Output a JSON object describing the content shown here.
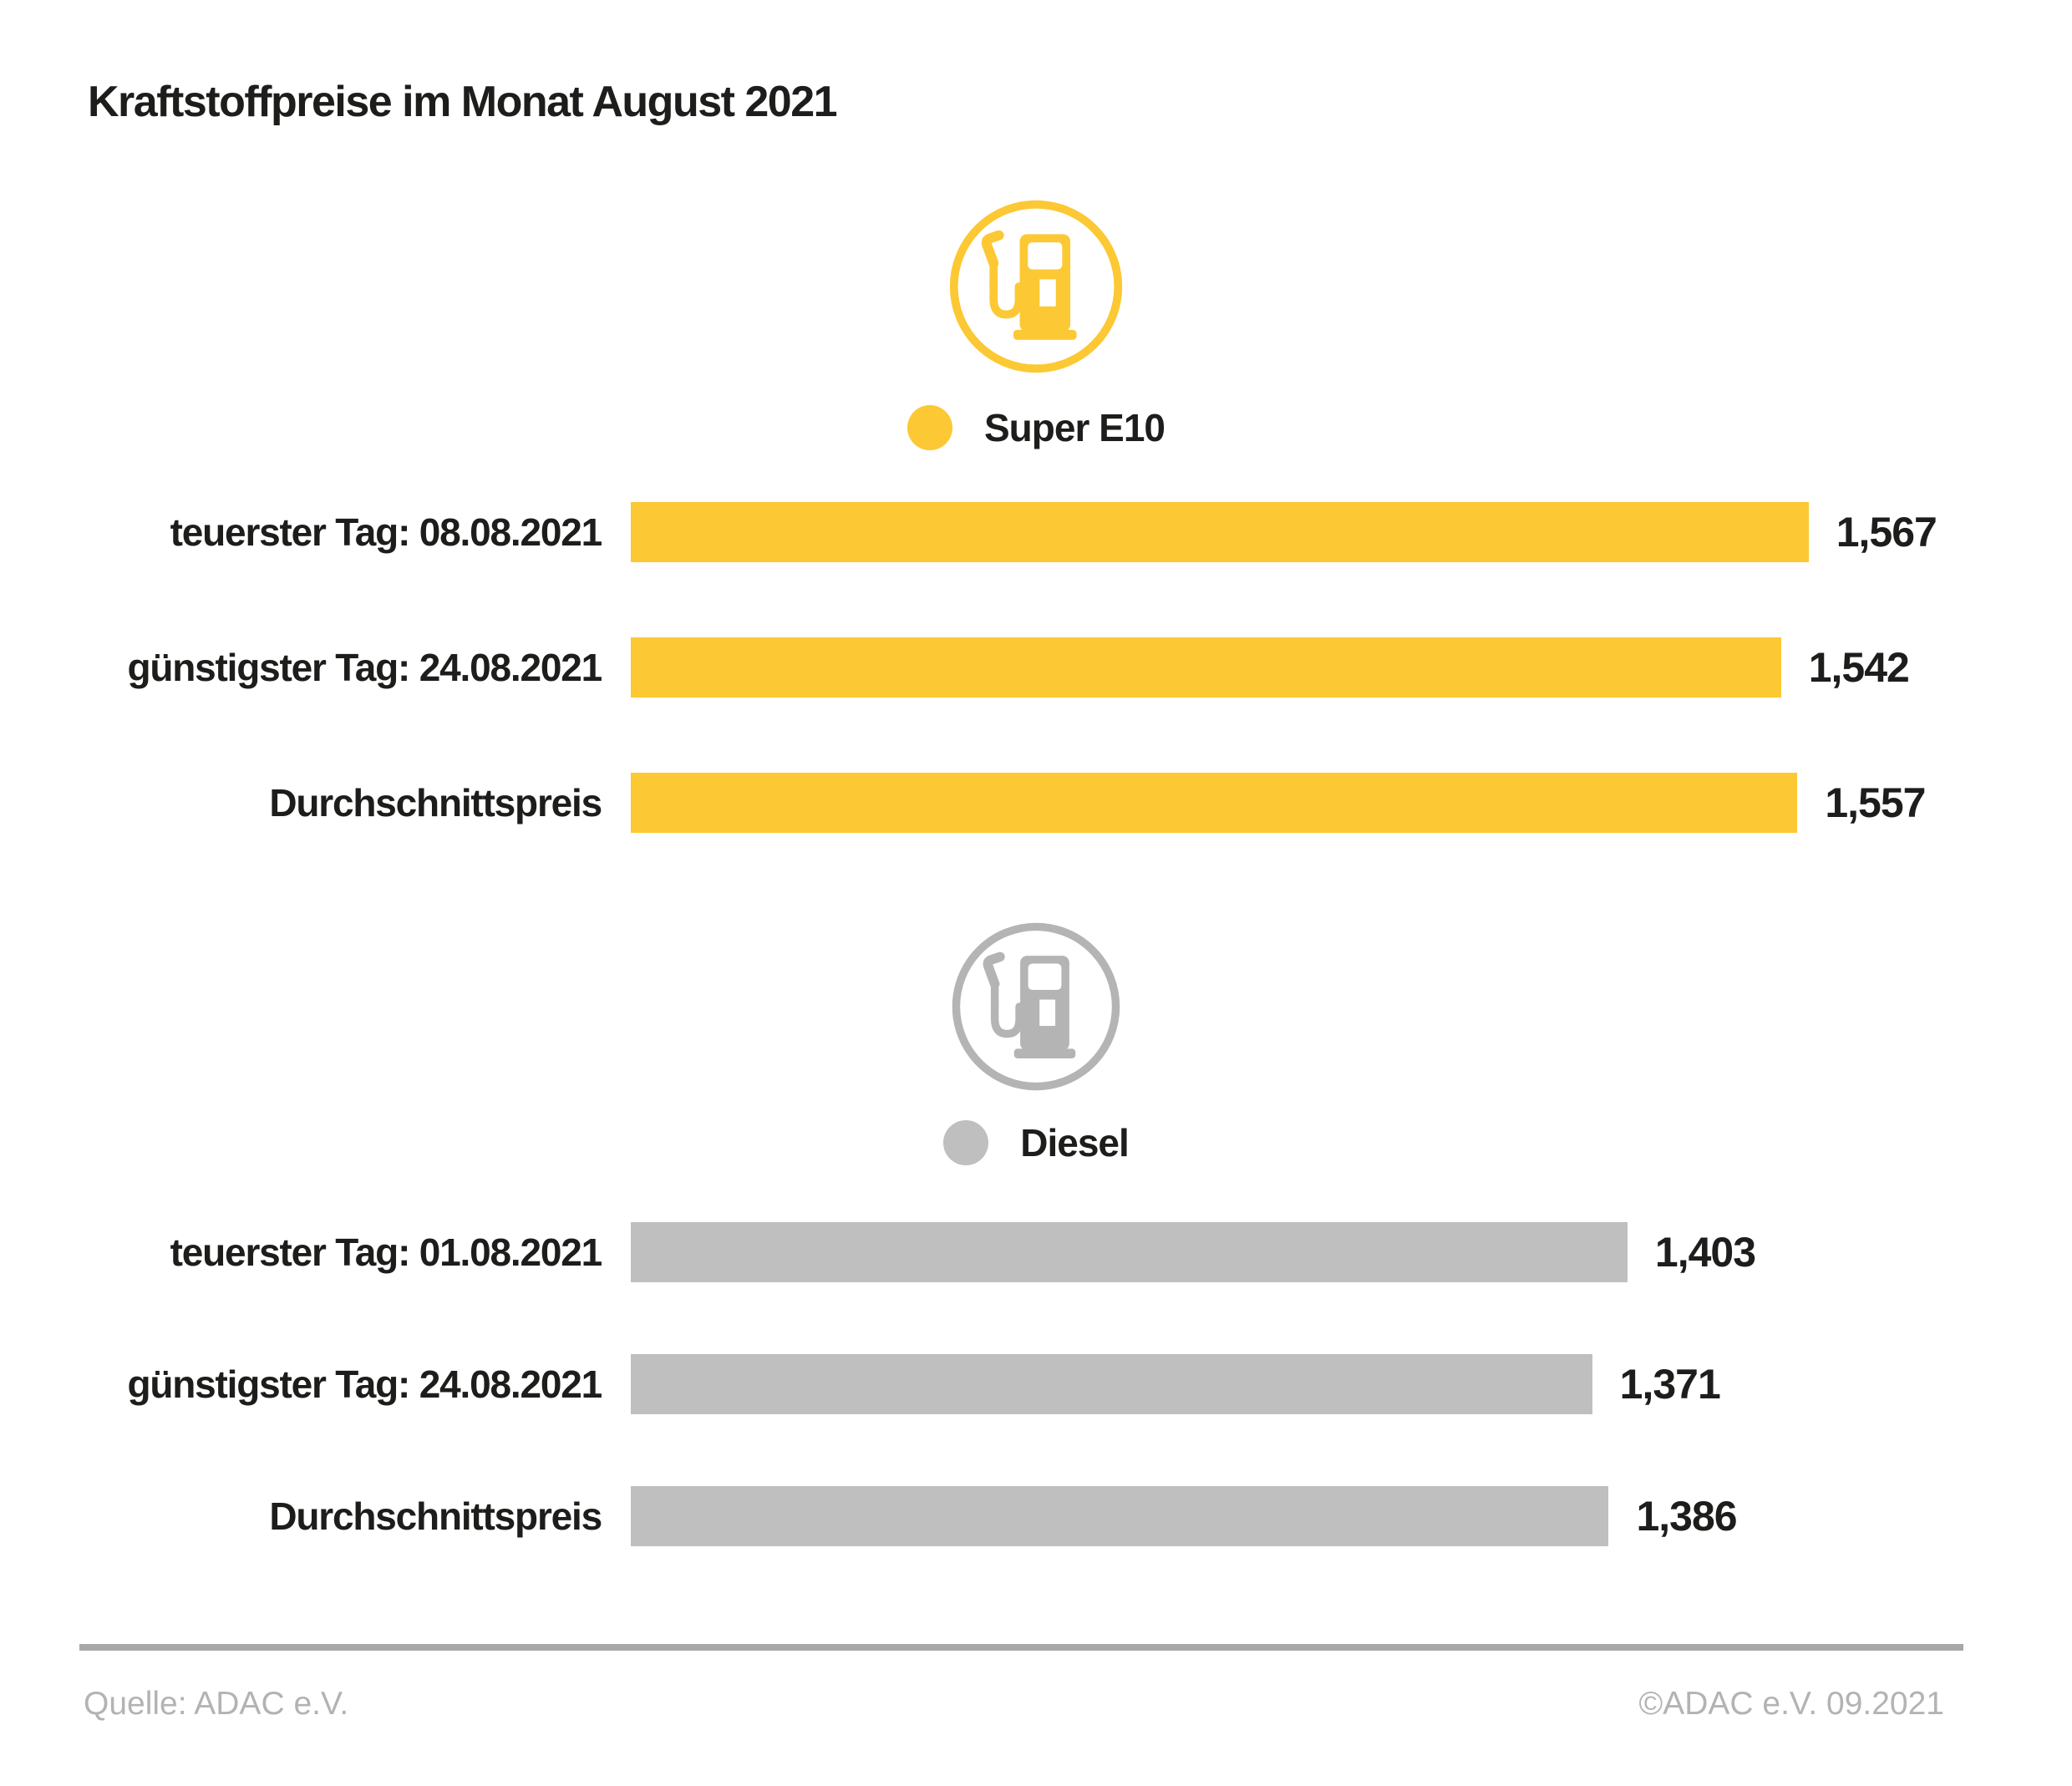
{
  "page": {
    "title": "Kraftstoffpreise im Monat August 2021",
    "footer": {
      "source": "Quelle: ADAC e.V.",
      "copyright": "©ADAC e.V. 09.2021"
    }
  },
  "colors": {
    "super_e10": "#FCC833",
    "diesel_bar": "#BFBFBF",
    "icon_gray": "#B4B4B4",
    "text": "#1D1D1B",
    "footer_text": "#B3B3B3",
    "rule": "#A8A8A8"
  },
  "chart_data": {
    "type": "bar",
    "orientation": "horizontal",
    "title": "Kraftstoffpreise im Monat August 2021",
    "xlim": [
      0.5,
      1.73
    ],
    "grid": false,
    "legend_position": "above-each-group",
    "groups": [
      {
        "name": "Super E10",
        "icon": "fuel-pump-icon",
        "color": "#FCC833",
        "categories": [
          "teuerster Tag: 08.08.2021",
          "günstigster Tag: 24.08.2021",
          "Durchschnittspreis"
        ],
        "values": [
          1.567,
          1.542,
          1.557
        ],
        "rows": [
          {
            "label": "teuerster Tag: 08.08.2021",
            "value": 1.567,
            "value_label": "1,567"
          },
          {
            "label": "günstigster Tag: 24.08.2021",
            "value": 1.542,
            "value_label": "1,542"
          },
          {
            "label": "Durchschnittspreis",
            "value": 1.557,
            "value_label": "1,557"
          }
        ]
      },
      {
        "name": "Diesel",
        "icon": "fuel-pump-icon",
        "color": "#BFBFBF",
        "categories": [
          "teuerster Tag: 01.08.2021",
          "günstigster Tag: 24.08.2021",
          "Durchschnittspreis"
        ],
        "values": [
          1.403,
          1.371,
          1.386
        ],
        "rows": [
          {
            "label": "teuerster Tag: 01.08.2021",
            "value": 1.403,
            "value_label": "1,403"
          },
          {
            "label": "günstigster Tag: 24.08.2021",
            "value": 1.371,
            "value_label": "1,371"
          },
          {
            "label": "Durchschnittspreis",
            "value": 1.386,
            "value_label": "1,386"
          }
        ]
      }
    ]
  }
}
